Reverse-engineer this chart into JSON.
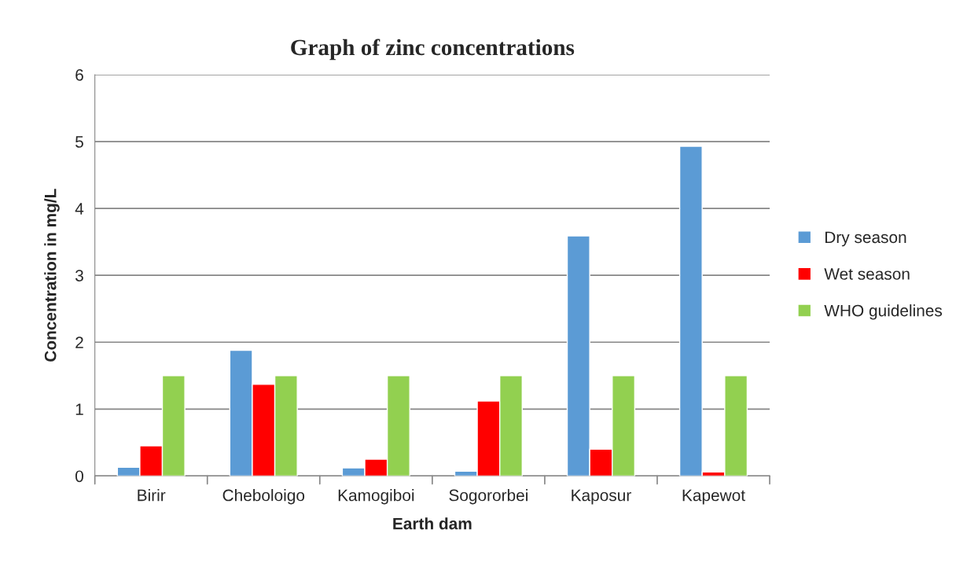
{
  "chart_data": {
    "type": "bar",
    "title": "Graph of zinc concentrations",
    "xlabel": "Earth dam",
    "ylabel": "Concentration in mg/L",
    "categories": [
      "Birir",
      "Cheboloigo",
      "Kamogiboi",
      "Sogororbei",
      "Kaposur",
      "Kapewot"
    ],
    "series": [
      {
        "name": "Dry season",
        "color": "#5b9bd5",
        "values": [
          0.13,
          1.88,
          0.12,
          0.07,
          3.59,
          4.93
        ]
      },
      {
        "name": "Wet season",
        "color": "#ff0000",
        "values": [
          0.45,
          1.37,
          0.25,
          1.12,
          0.4,
          0.06
        ]
      },
      {
        "name": "WHO guidelines",
        "color": "#92d050",
        "values": [
          1.5,
          1.5,
          1.5,
          1.5,
          1.5,
          1.5
        ]
      }
    ],
    "ylim": [
      0,
      6
    ],
    "yticks": [
      0,
      1,
      2,
      3,
      4,
      5,
      6
    ],
    "grid": "y",
    "legend": "right"
  }
}
